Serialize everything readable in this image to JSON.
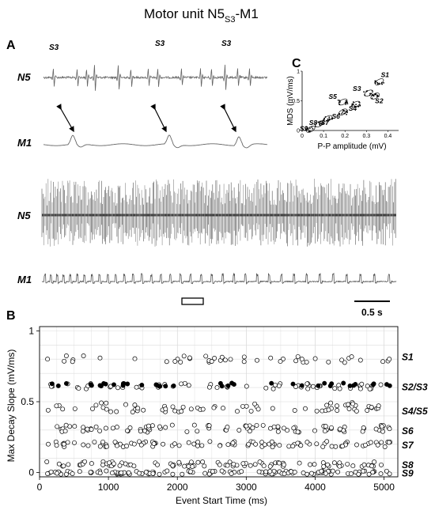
{
  "figure": {
    "title_main": "Motor unit N5",
    "title_sub": "S3",
    "title_tail": "-M1"
  },
  "panel_a": {
    "letter": "A",
    "trace_top": "N5",
    "trace_bottom": "M1",
    "spike_labels": [
      "S3",
      "S3",
      "S3"
    ],
    "trace_long_top": "N5",
    "trace_long_bottom": "M1",
    "scale_bar_label": "0.5 s"
  },
  "panel_c": {
    "letter": "C",
    "chart_data": {
      "type": "scatter",
      "xlabel": "P-P amplitude (mV)",
      "ylabel": "MDS (mV/ms)",
      "xlim": [
        0,
        0.45
      ],
      "ylim": [
        0,
        1.0
      ],
      "x_ticks": [
        "0",
        "0.1",
        "0.2",
        "0.3",
        "0.4"
      ],
      "y_ticks": [
        "0",
        "0.5",
        "1"
      ],
      "clusters": [
        {
          "name": "S1",
          "x": 0.36,
          "y": 0.82
        },
        {
          "name": "S2",
          "x": 0.34,
          "y": 0.58
        },
        {
          "name": "S3",
          "x": 0.31,
          "y": 0.63
        },
        {
          "name": "S4",
          "x": 0.25,
          "y": 0.44
        },
        {
          "name": "S5",
          "x": 0.19,
          "y": 0.48
        },
        {
          "name": "S6",
          "x": 0.19,
          "y": 0.31
        },
        {
          "name": "S7",
          "x": 0.12,
          "y": 0.2
        },
        {
          "name": "S8",
          "x": 0.08,
          "y": 0.11
        },
        {
          "name": "S9",
          "x": 0.04,
          "y": 0.02
        }
      ]
    }
  },
  "panel_b": {
    "letter": "B",
    "chart_data": {
      "type": "scatter",
      "xlabel": "Event Start Time  (ms)",
      "ylabel": "Max Decay Slope  (mV/ms)",
      "xlim": [
        0,
        5200
      ],
      "ylim": [
        -0.03,
        1.03
      ],
      "x_ticks": [
        "0",
        "1000",
        "2000",
        "3000",
        "4000",
        "5000"
      ],
      "y_ticks": [
        "0",
        "0.5",
        "1"
      ],
      "grid": true,
      "series_labels": [
        {
          "name": "S1",
          "y": 0.82
        },
        {
          "name": "S2/S3",
          "y": 0.61
        },
        {
          "name": "S4/S5",
          "y": 0.44
        },
        {
          "name": "S6",
          "y": 0.3
        },
        {
          "name": "S7",
          "y": 0.2
        },
        {
          "name": "S8",
          "y": 0.06
        },
        {
          "name": "S9",
          "y": 0.0
        }
      ],
      "bands": [
        {
          "name": "S1",
          "y": 0.8,
          "spread": 0.025,
          "count": 45,
          "filled": false
        },
        {
          "name": "S2/S3 open",
          "y": 0.61,
          "spread": 0.02,
          "count": 60,
          "filled": false
        },
        {
          "name": "S2/S3 filled",
          "y": 0.62,
          "spread": 0.012,
          "count": 40,
          "filled": true
        },
        {
          "name": "S4/S5",
          "y": 0.46,
          "spread": 0.035,
          "count": 70,
          "filled": false
        },
        {
          "name": "S6",
          "y": 0.31,
          "spread": 0.025,
          "count": 90,
          "filled": false
        },
        {
          "name": "S7",
          "y": 0.2,
          "spread": 0.02,
          "count": 100,
          "filled": false
        },
        {
          "name": "S8",
          "y": 0.06,
          "spread": 0.018,
          "count": 90,
          "filled": false
        },
        {
          "name": "S9",
          "y": 0.0,
          "spread": 0.012,
          "count": 120,
          "filled": false
        }
      ]
    }
  }
}
